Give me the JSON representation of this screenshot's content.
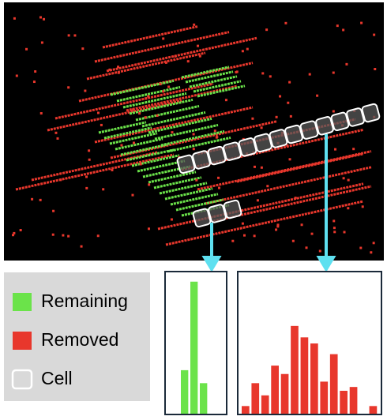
{
  "legend": {
    "items": [
      {
        "label": "Remaining",
        "color": "#6be34a"
      },
      {
        "label": "Removed",
        "color": "#e8372c"
      },
      {
        "label": "Cell",
        "color": "#ffffff"
      }
    ]
  },
  "chart_data": [
    {
      "type": "bar",
      "color": "#6be34a",
      "values": [
        57,
        173,
        40
      ],
      "ylim": [
        0,
        180
      ]
    },
    {
      "type": "bar",
      "color": "#e8372c",
      "values": [
        10,
        40,
        24,
        63,
        52,
        115,
        100,
        92,
        42,
        78,
        30,
        35,
        0,
        10
      ],
      "ylim": [
        0,
        180
      ]
    }
  ]
}
